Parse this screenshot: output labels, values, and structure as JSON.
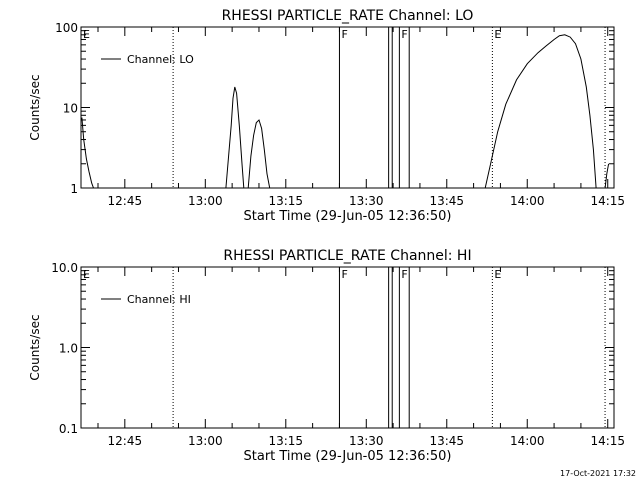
{
  "timestamp": "17-Oct-2021 17:32",
  "chart_data": [
    {
      "type": "line",
      "title": "RHESSI PARTICLE_RATE Channel: LO",
      "xlabel": "Start Time (29-Jun-05 12:36:50)",
      "ylabel": "Counts/sec",
      "yscale": "log",
      "ylim": [
        1,
        100
      ],
      "yticks": [
        1,
        10,
        100
      ],
      "ytick_labels": [
        "1",
        "10",
        "100"
      ],
      "xlim": [
        "12:36:50",
        "14:16:10"
      ],
      "xticks": [
        "12:45",
        "13:00",
        "13:15",
        "13:30",
        "13:45",
        "14:00",
        "14:15"
      ],
      "legend": {
        "position": "top-left",
        "entries": [
          "Channel: LO"
        ]
      },
      "series": [
        {
          "name": "Channel: LO",
          "segments": [
            [
              [
                "12:37:00",
                7.5
              ],
              [
                "12:37:20",
                4.0
              ],
              [
                "12:37:50",
                2.3
              ],
              [
                "12:38:20",
                1.6
              ],
              [
                "12:38:50",
                1.15
              ],
              [
                "12:39:10",
                1.0
              ]
            ],
            [
              [
                "13:03:50",
                1.0
              ],
              [
                "13:04:20",
                2.5
              ],
              [
                "13:04:50",
                6.0
              ],
              [
                "13:05:10",
                13.0
              ],
              [
                "13:05:30",
                18.0
              ],
              [
                "13:05:50",
                15.0
              ],
              [
                "13:06:20",
                6.0
              ],
              [
                "13:06:50",
                2.0
              ],
              [
                "13:07:10",
                1.0
              ]
            ],
            [
              [
                "13:08:00",
                1.0
              ],
              [
                "13:08:30",
                2.5
              ],
              [
                "13:09:00",
                4.5
              ],
              [
                "13:09:30",
                6.5
              ],
              [
                "13:10:00",
                7.0
              ],
              [
                "13:10:30",
                5.5
              ],
              [
                "13:11:00",
                3.0
              ],
              [
                "13:11:30",
                1.5
              ],
              [
                "13:12:00",
                1.0
              ]
            ],
            [
              [
                "13:52:10",
                1.0
              ],
              [
                "13:53:10",
                2.0
              ],
              [
                "13:54:30",
                5.0
              ],
              [
                "13:56:00",
                11.0
              ],
              [
                "13:58:00",
                22.0
              ],
              [
                "14:00:00",
                35.0
              ],
              [
                "14:02:00",
                48.0
              ],
              [
                "14:03:30",
                58.0
              ],
              [
                "14:05:00",
                70.0
              ],
              [
                "14:06:00",
                78.0
              ],
              [
                "14:07:00",
                80.0
              ],
              [
                "14:08:00",
                75.0
              ],
              [
                "14:09:00",
                62.0
              ],
              [
                "14:10:00",
                40.0
              ],
              [
                "14:11:00",
                18.0
              ],
              [
                "14:11:40",
                8.0
              ],
              [
                "14:12:20",
                3.0
              ],
              [
                "14:12:50",
                1.0
              ]
            ],
            [
              [
                "14:14:30",
                1.0
              ],
              [
                "14:14:50",
                1.5
              ],
              [
                "14:15:10",
                2.0
              ]
            ]
          ]
        }
      ],
      "markers": [
        {
          "label": "E",
          "time": "12:36:50",
          "style": "dotted"
        },
        {
          "label": "",
          "time": "12:54:00",
          "style": "dotted"
        },
        {
          "label": "F",
          "time": "13:25:00",
          "style": "solid"
        },
        {
          "label": "",
          "time": "13:34:10",
          "style": "solid"
        },
        {
          "label": "",
          "time": "13:34:50",
          "style": "solid"
        },
        {
          "label": "F",
          "time": "13:36:10",
          "style": "solid"
        },
        {
          "label": "",
          "time": "13:38:00",
          "style": "solid"
        },
        {
          "label": "E",
          "time": "13:53:30",
          "style": "dotted"
        },
        {
          "label": "",
          "time": "14:14:30",
          "style": "dotted"
        }
      ]
    },
    {
      "type": "line",
      "title": "RHESSI PARTICLE_RATE Channel: HI",
      "xlabel": "Start Time (29-Jun-05 12:36:50)",
      "ylabel": "Counts/sec",
      "yscale": "log",
      "ylim": [
        0.1,
        10
      ],
      "yticks": [
        0.1,
        1,
        10
      ],
      "ytick_labels": [
        "0.1",
        "1.0",
        "10.0"
      ],
      "xlim": [
        "12:36:50",
        "14:16:10"
      ],
      "xticks": [
        "12:45",
        "13:00",
        "13:15",
        "13:30",
        "13:45",
        "14:00",
        "14:15"
      ],
      "legend": {
        "position": "top-left",
        "entries": [
          "Channel: HI"
        ]
      },
      "series": [
        {
          "name": "Channel: HI",
          "segments": []
        }
      ],
      "markers": [
        {
          "label": "E",
          "time": "12:36:50",
          "style": "dotted"
        },
        {
          "label": "",
          "time": "12:54:00",
          "style": "dotted"
        },
        {
          "label": "F",
          "time": "13:25:00",
          "style": "solid"
        },
        {
          "label": "",
          "time": "13:34:10",
          "style": "solid"
        },
        {
          "label": "",
          "time": "13:34:50",
          "style": "solid"
        },
        {
          "label": "F",
          "time": "13:36:10",
          "style": "solid"
        },
        {
          "label": "",
          "time": "13:38:00",
          "style": "solid"
        },
        {
          "label": "E",
          "time": "13:53:30",
          "style": "dotted"
        },
        {
          "label": "",
          "time": "14:14:30",
          "style": "dotted"
        }
      ]
    }
  ]
}
